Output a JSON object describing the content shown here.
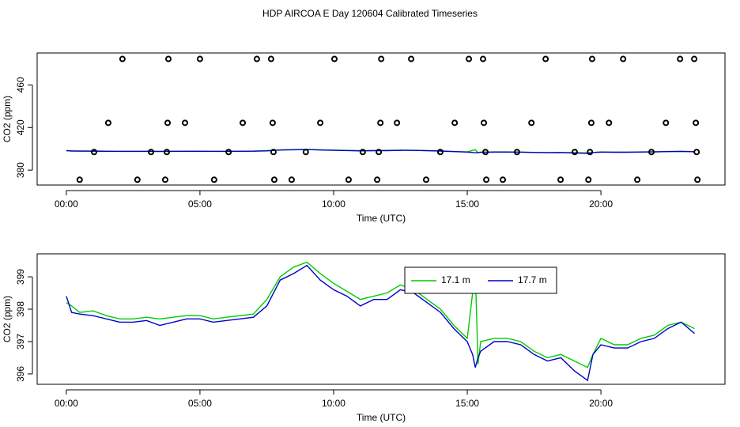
{
  "chart_data": [
    {
      "type": "scatter",
      "title": "HDP AIRCOA E  Day 120604  Calibrated Timeseries",
      "xlabel": "Time (UTC)",
      "ylabel": "CO2 (ppm)",
      "xlim": [
        -1.09,
        24.64
      ],
      "ylim": [
        366,
        490
      ],
      "xticks": [
        {
          "value": 0,
          "label": "00:00"
        },
        {
          "value": 5,
          "label": "05:00"
        },
        {
          "value": 10,
          "label": "10:00"
        },
        {
          "value": 15,
          "label": "15:00"
        },
        {
          "value": 20,
          "label": "20:00"
        }
      ],
      "yticks": [
        380,
        420,
        460
      ],
      "color": "#000000",
      "x": [
        2.1,
        3.82,
        5.0,
        7.13,
        7.66,
        10.03,
        11.78,
        12.9,
        15.06,
        15.59,
        17.93,
        19.67,
        20.83,
        22.96,
        23.49,
        1.57,
        3.79,
        4.44,
        6.6,
        7.72,
        9.5,
        11.75,
        12.37,
        14.53,
        15.62,
        17.4,
        19.64,
        20.3,
        22.43,
        23.55,
        1.04,
        3.17,
        3.76,
        6.07,
        7.75,
        8.96,
        11.09,
        11.69,
        13.99,
        15.68,
        16.86,
        19.02,
        19.59,
        21.89,
        23.58,
        0.5,
        2.66,
        3.7,
        5.53,
        7.78,
        8.43,
        10.56,
        11.63,
        13.46,
        15.71,
        16.33,
        18.49,
        19.53,
        21.36,
        23.61
      ],
      "values": [
        484.4,
        484.4,
        484.4,
        484.4,
        484.4,
        484.4,
        484.4,
        484.4,
        484.4,
        484.4,
        484.4,
        484.4,
        484.4,
        484.4,
        484.4,
        424.4,
        424.4,
        424.4,
        424.4,
        424.4,
        424.4,
        424.4,
        424.4,
        424.4,
        424.4,
        424.4,
        424.4,
        424.4,
        424.4,
        424.4,
        397,
        397,
        397,
        397,
        397,
        397,
        397,
        397,
        397,
        397,
        397,
        397,
        397,
        397,
        397,
        371,
        371,
        371,
        371,
        371,
        371,
        371,
        371,
        371,
        371,
        371,
        371,
        371,
        371,
        371
      ],
      "series": [
        {
          "color": "#00cc00",
          "x": [
            0,
            0.2,
            0.5,
            1,
            1.5,
            2,
            2.5,
            3,
            3.5,
            4,
            4.5,
            5,
            5.5,
            6,
            6.5,
            7,
            7.5,
            8,
            8.5,
            9,
            9.5,
            10,
            10.5,
            11,
            11.5,
            12,
            12.5,
            13,
            13.5,
            14,
            14.5,
            15,
            15.2,
            15.3,
            15.4,
            15.5,
            16,
            16.5,
            17,
            17.5,
            18,
            18.5,
            19,
            19.5,
            19.7,
            20,
            20.5,
            21,
            21.5,
            22,
            22.5,
            23,
            23.5
          ],
          "values": [
            398.2,
            398.1,
            397.9,
            397.95,
            397.8,
            397.7,
            397.7,
            397.75,
            397.7,
            397.75,
            397.8,
            397.8,
            397.7,
            397.75,
            397.8,
            397.85,
            398.3,
            399.0,
            399.3,
            399.45,
            399.1,
            398.8,
            398.55,
            398.3,
            398.4,
            398.5,
            398.75,
            398.6,
            398.3,
            398.0,
            397.5,
            397.1,
            398.5,
            399.2,
            396.3,
            397.0,
            397.1,
            397.1,
            397.0,
            396.7,
            396.5,
            396.6,
            396.4,
            396.2,
            396.6,
            397.1,
            396.9,
            396.9,
            397.1,
            397.2,
            397.5,
            397.6,
            397.4
          ]
        },
        {
          "color": "#0000cc",
          "x": [
            0,
            0.2,
            0.5,
            1,
            1.5,
            2,
            2.5,
            3,
            3.5,
            4,
            4.5,
            5,
            5.5,
            6,
            6.5,
            7,
            7.5,
            8,
            8.5,
            9,
            9.5,
            10,
            10.5,
            11,
            11.5,
            12,
            12.5,
            13,
            13.5,
            14,
            14.5,
            15,
            15.2,
            15.3,
            15.4,
            15.5,
            16,
            16.5,
            17,
            17.5,
            18,
            18.5,
            19,
            19.5,
            19.7,
            20,
            20.5,
            21,
            21.5,
            22,
            22.5,
            23,
            23.5
          ],
          "values": [
            398.4,
            397.9,
            397.85,
            397.8,
            397.7,
            397.6,
            397.6,
            397.65,
            397.5,
            397.6,
            397.7,
            397.7,
            397.6,
            397.65,
            397.7,
            397.75,
            398.1,
            398.9,
            399.1,
            399.35,
            398.9,
            398.6,
            398.4,
            398.1,
            398.3,
            398.3,
            398.6,
            398.5,
            398.2,
            397.9,
            397.4,
            397.0,
            396.6,
            396.2,
            396.5,
            396.7,
            397.0,
            397.0,
            396.9,
            396.6,
            396.4,
            396.5,
            396.1,
            395.8,
            396.6,
            396.9,
            396.8,
            396.8,
            397.0,
            397.1,
            397.4,
            397.6,
            397.25
          ]
        }
      ]
    },
    {
      "type": "line",
      "xlabel": "Time (UTC)",
      "ylabel": "CO2 (ppm)",
      "xlim": [
        -1.09,
        24.64
      ],
      "ylim": [
        395.68,
        399.71
      ],
      "xticks": [
        {
          "value": 0,
          "label": "00:00"
        },
        {
          "value": 5,
          "label": "05:00"
        },
        {
          "value": 10,
          "label": "10:00"
        },
        {
          "value": 15,
          "label": "15:00"
        },
        {
          "value": 20,
          "label": "20:00"
        }
      ],
      "yticks": [
        396,
        397,
        398,
        399
      ],
      "legend": "top-center",
      "x": [
        0,
        0.2,
        0.5,
        1,
        1.5,
        2,
        2.5,
        3,
        3.5,
        4,
        4.5,
        5,
        5.5,
        6,
        6.5,
        7,
        7.5,
        8,
        8.5,
        9,
        9.5,
        10,
        10.5,
        11,
        11.5,
        12,
        12.5,
        13,
        13.5,
        14,
        14.5,
        15,
        15.2,
        15.3,
        15.4,
        15.5,
        16,
        16.5,
        17,
        17.5,
        18,
        18.5,
        19,
        19.5,
        19.7,
        20,
        20.5,
        21,
        21.5,
        22,
        22.5,
        23,
        23.5
      ],
      "series": [
        {
          "name": "17.1 m",
          "color": "#00cc00",
          "values": [
            398.2,
            398.1,
            397.9,
            397.95,
            397.8,
            397.7,
            397.7,
            397.75,
            397.7,
            397.75,
            397.8,
            397.8,
            397.7,
            397.75,
            397.8,
            397.85,
            398.3,
            399.0,
            399.3,
            399.45,
            399.1,
            398.8,
            398.55,
            398.3,
            398.4,
            398.5,
            398.75,
            398.6,
            398.3,
            398.0,
            397.5,
            397.1,
            398.5,
            399.2,
            396.3,
            397.0,
            397.1,
            397.1,
            397.0,
            396.7,
            396.5,
            396.6,
            396.4,
            396.2,
            396.6,
            397.1,
            396.9,
            396.9,
            397.1,
            397.2,
            397.5,
            397.6,
            397.4
          ]
        },
        {
          "name": "17.7 m",
          "color": "#0000cc",
          "values": [
            398.4,
            397.9,
            397.85,
            397.8,
            397.7,
            397.6,
            397.6,
            397.65,
            397.5,
            397.6,
            397.7,
            397.7,
            397.6,
            397.65,
            397.7,
            397.75,
            398.1,
            398.9,
            399.1,
            399.35,
            398.9,
            398.6,
            398.4,
            398.1,
            398.3,
            398.3,
            398.6,
            398.5,
            398.2,
            397.9,
            397.4,
            397.0,
            396.6,
            396.2,
            396.5,
            396.7,
            397.0,
            397.0,
            396.9,
            396.6,
            396.4,
            396.5,
            396.1,
            395.8,
            396.6,
            396.9,
            396.8,
            396.8,
            397.0,
            397.1,
            397.4,
            397.6,
            397.25
          ]
        }
      ]
    }
  ]
}
